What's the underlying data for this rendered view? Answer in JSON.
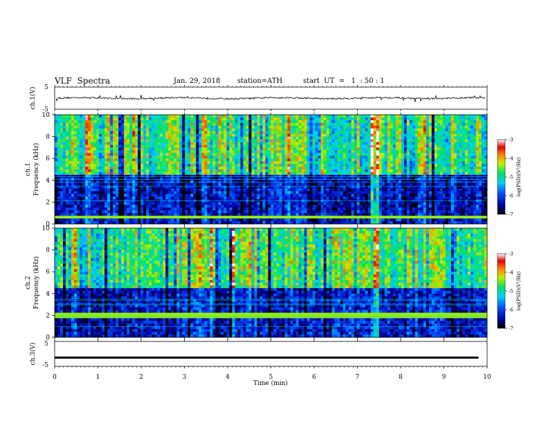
{
  "header": {
    "title": "VLF  Spectra",
    "date": "Jan. 29, 2018",
    "station": "station=ATH",
    "start": "start  UT  =   1  : 50 : 1"
  },
  "chart_data": [
    {
      "type": "line",
      "panel": "ch1-waveform",
      "ylabel": "ch.1(V)",
      "ylim": [
        -5,
        5
      ],
      "y_ticks": [
        "5",
        "-5"
      ],
      "xlim": [
        0,
        10
      ],
      "note_series": "noisy broadband waveform around ~0 V, spikes to about ±1.5 V"
    },
    {
      "type": "heatmap",
      "panel": "ch1-spectrogram",
      "ylabel": "ch.1\nFrequency (kHz)",
      "ylabel_line1": "ch.1",
      "ylabel_line2": "Frequency (kHz)",
      "ylim": [
        0,
        10
      ],
      "y_ticks": [
        "0",
        "2",
        "4",
        "6",
        "8",
        "10"
      ],
      "xlim": [
        0,
        10
      ],
      "colorbar": {
        "label": "log(PSD)(V²/Hz)",
        "range": [
          -7,
          -3
        ],
        "ticks": [
          "-3",
          "-4",
          "-5",
          "-6",
          "-7"
        ]
      },
      "features": {
        "low_band_kHz": [
          0,
          4.5
        ],
        "low_band_level": -6.3,
        "high_band_level": -4.8,
        "bright_hline_kHz": 0.6,
        "strong_burst_min": 7.4
      }
    },
    {
      "type": "heatmap",
      "panel": "ch2-spectrogram",
      "ylabel_line1": "ch.2",
      "ylabel_line2": "Frequency (kHz)",
      "ylim": [
        0,
        10
      ],
      "y_ticks": [
        "0",
        "2",
        "4",
        "6",
        "8",
        "10"
      ],
      "xlim": [
        0,
        10
      ],
      "colorbar": {
        "label": "log(PSD)(V²/Hz)",
        "range": [
          -7,
          -3
        ],
        "ticks": [
          "-3",
          "-4",
          "-5",
          "-6",
          "-7"
        ]
      },
      "features": {
        "low_band_kHz": [
          0,
          4.5
        ],
        "low_band_level": -6.3,
        "high_band_level": -4.8,
        "bright_hline_kHz": 2.0,
        "strong_burst_min": 7.4
      }
    },
    {
      "type": "line",
      "panel": "ch3-waveform",
      "ylabel": "ch.3(V)",
      "ylim": [
        -5,
        5
      ],
      "y_ticks": [
        "5",
        "-5"
      ],
      "xlim": [
        0,
        9.8
      ],
      "constant_value": -1.5
    }
  ],
  "x_axis": {
    "label": "Time  (min)",
    "ticks": [
      "0",
      "1",
      "2",
      "3",
      "4",
      "5",
      "6",
      "7",
      "8",
      "9",
      "10"
    ]
  },
  "colors": {
    "axis": "#000000",
    "background": "#ffffff"
  }
}
